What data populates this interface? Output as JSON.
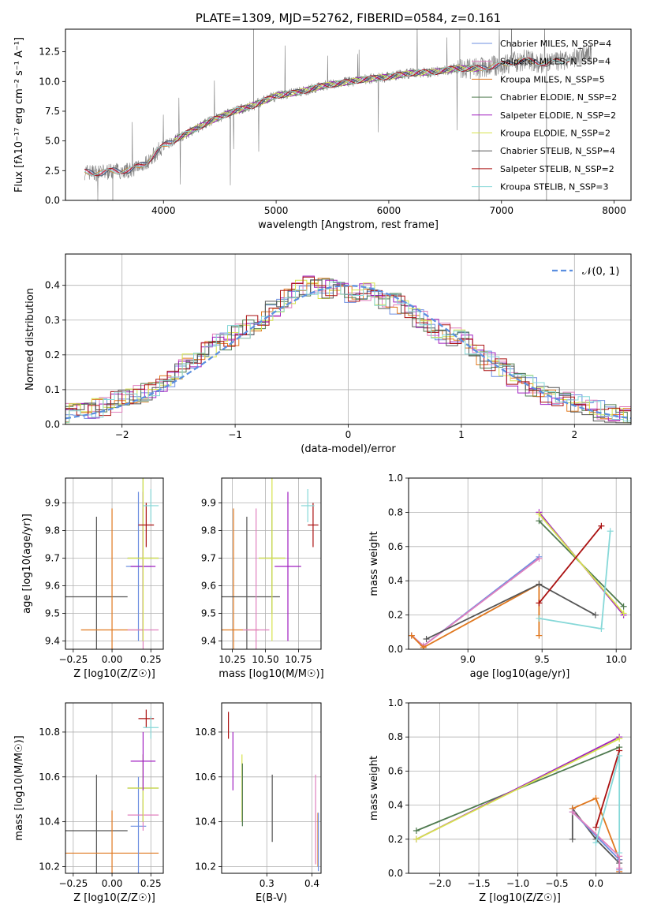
{
  "colors": {
    "chabrier_miles": "#6d8fe0",
    "salpeter_miles": "#e07fbe",
    "kroupa_miles": "#e0781f",
    "chabrier_elodie": "#4f7a4f",
    "salpeter_elodie": "#a01fc0",
    "kroupa_elodie": "#d6e34c",
    "chabrier_stelib": "#555555",
    "salpeter_stelib": "#aa1010",
    "kroupa_stelib": "#86d8d8",
    "spectrum": "#808080",
    "gaussian": "#5b8fe0"
  },
  "chart_data": [
    {
      "type": "line",
      "title": "PLATE=1309, MJD=52762, FIBERID=0584, z=0.161",
      "xlabel": "wavelength [Angstrom, rest frame]",
      "ylabel": "Flux [fλ10⁻¹⁷ erg cm⁻² s⁻¹ A⁻¹]",
      "xlim": [
        3130,
        8150
      ],
      "ylim": [
        0,
        14.4
      ],
      "xticks": [
        4000,
        5000,
        6000,
        7000,
        8000
      ],
      "yticks": [
        0.0,
        2.5,
        5.0,
        7.5,
        10.0,
        12.5
      ],
      "grid": false,
      "legend_position": "right",
      "legend": [
        "Chabrier MILES, N_SSP=4",
        "Salpeter MILES, N_SSP=4",
        "Kroupa MILES, N_SSP=5",
        "Chabrier ELODIE, N_SSP=2",
        "Salpeter ELODIE, N_SSP=2",
        "Kroupa ELODIE, N_SSP=2",
        "Chabrier STELIB, N_SSP=4",
        "Salpeter STELIB, N_SSP=2",
        "Kroupa STELIB, N_SSP=3"
      ],
      "model_continuum": {
        "x": [
          3300,
          3450,
          3550,
          3700,
          3850,
          4000,
          4200,
          4400,
          4600,
          4800,
          5000,
          5200,
          5400,
          5600,
          5800,
          6000,
          6200,
          6400,
          6600,
          6800,
          7000,
          7200,
          7400,
          7600,
          7800
        ],
        "y": [
          2.4,
          2.3,
          2.5,
          2.5,
          3.2,
          4.6,
          5.6,
          6.6,
          7.4,
          8.0,
          8.8,
          9.1,
          9.6,
          9.9,
          10.2,
          10.4,
          10.7,
          10.8,
          11.1,
          11.1,
          11.4,
          11.8,
          11.5,
          11.9,
          12.4
        ]
      }
    },
    {
      "type": "line",
      "xlabel": "(data-model)/error",
      "ylabel": "Normed distribution",
      "xlim": [
        -2.5,
        2.5
      ],
      "ylim": [
        0,
        0.49
      ],
      "xticks": [
        -2,
        -1,
        0,
        1,
        2
      ],
      "yticks": [
        0.0,
        0.1,
        0.2,
        0.3,
        0.4
      ],
      "grid": true,
      "legend": [
        "𝒩(0, 1)"
      ],
      "legend_position": "top-right",
      "histogram_envelope": {
        "x": [
          -2.5,
          -2.2,
          -2.0,
          -1.8,
          -1.6,
          -1.4,
          -1.2,
          -1.0,
          -0.8,
          -0.6,
          -0.4,
          -0.2,
          0.0,
          0.2,
          0.4,
          0.6,
          0.8,
          1.0,
          1.2,
          1.4,
          1.6,
          1.8,
          2.0,
          2.2,
          2.5
        ],
        "y": [
          0.03,
          0.05,
          0.07,
          0.09,
          0.12,
          0.18,
          0.22,
          0.26,
          0.3,
          0.35,
          0.4,
          0.39,
          0.38,
          0.38,
          0.35,
          0.31,
          0.27,
          0.24,
          0.19,
          0.15,
          0.11,
          0.08,
          0.06,
          0.04,
          0.02
        ]
      }
    },
    {
      "type": "scatter",
      "xlabel": "Z [log10(Z/Z☉)]",
      "ylabel": "age  [log10(age/yr)]",
      "xlim": [
        -0.3,
        0.33
      ],
      "ylim": [
        9.37,
        9.99
      ],
      "xticks": [
        -0.25,
        0.0,
        0.25
      ],
      "yticks": [
        9.4,
        9.5,
        9.6,
        9.7,
        9.8,
        9.9
      ],
      "grid": true,
      "points": [
        {
          "model": "chabrier_stelib",
          "x": -0.1,
          "y": 9.56,
          "xerr": 0.2,
          "yerr": 0.29
        },
        {
          "model": "kroupa_miles",
          "x": 0.0,
          "y": 9.44,
          "xerr": 0.2,
          "yerr": 0.44
        },
        {
          "model": "chabrier_miles",
          "x": 0.17,
          "y": 9.67,
          "xerr": 0.08,
          "yerr": 0.27
        },
        {
          "model": "salpeter_miles",
          "x": 0.2,
          "y": 9.44,
          "xerr": 0.1,
          "yerr": 0.44
        },
        {
          "model": "chabrier_elodie",
          "x": 0.2,
          "y": 9.7,
          "xerr": 0.1,
          "yerr": 0.3
        },
        {
          "model": "salpeter_elodie",
          "x": 0.2,
          "y": 9.67,
          "xerr": 0.08,
          "yerr": 0.27
        },
        {
          "model": "kroupa_elodie",
          "x": 0.2,
          "y": 9.7,
          "xerr": 0.1,
          "yerr": 0.3
        },
        {
          "model": "salpeter_stelib",
          "x": 0.22,
          "y": 9.82,
          "xerr": 0.05,
          "yerr": 0.08
        },
        {
          "model": "kroupa_stelib",
          "x": 0.25,
          "y": 9.89,
          "xerr": 0.05,
          "yerr": 0.06
        }
      ]
    },
    {
      "type": "scatter",
      "xlabel": "mass [log10(M/M☉)]",
      "ylabel": "",
      "xlim": [
        10.17,
        10.92
      ],
      "ylim": [
        9.37,
        9.99
      ],
      "xticks": [
        10.25,
        10.5,
        10.75
      ],
      "yticks": [
        9.4,
        9.5,
        9.6,
        9.7,
        9.8,
        9.9
      ],
      "grid": true,
      "points": [
        {
          "model": "kroupa_miles",
          "x": 10.26,
          "y": 9.44,
          "xerr": 0.19,
          "yerr": 0.44
        },
        {
          "model": "chabrier_stelib",
          "x": 10.36,
          "y": 9.56,
          "xerr": 0.25,
          "yerr": 0.29
        },
        {
          "model": "chabrier_elodie",
          "x": 10.55,
          "y": 9.7,
          "xerr": 0.1,
          "yerr": 0.2
        },
        {
          "model": "salpeter_miles",
          "x": 10.43,
          "y": 9.44,
          "xerr": 0.1,
          "yerr": 0.44
        },
        {
          "model": "kroupa_elodie",
          "x": 10.55,
          "y": 9.7,
          "xerr": 0.1,
          "yerr": 0.3
        },
        {
          "model": "salpeter_elodie",
          "x": 10.67,
          "y": 9.67,
          "xerr": 0.1,
          "yerr": 0.27
        },
        {
          "model": "salpeter_stelib",
          "x": 10.86,
          "y": 9.82,
          "xerr": 0.04,
          "yerr": 0.08
        },
        {
          "model": "kroupa_stelib",
          "x": 10.82,
          "y": 9.89,
          "xerr": 0.05,
          "yerr": 0.06
        }
      ]
    },
    {
      "type": "line",
      "xlabel": "age  [log10(age/yr)]",
      "ylabel": "mass weight",
      "xlim": [
        8.6,
        10.1
      ],
      "ylim": [
        0.0,
        1.0
      ],
      "xticks": [
        9.0,
        9.5,
        10.0
      ],
      "yticks": [
        0.0,
        0.2,
        0.4,
        0.6,
        0.8,
        1.0
      ],
      "grid": true,
      "series": [
        {
          "model": "chabrier_miles",
          "x": [
            8.62,
            8.7,
            9.48
          ],
          "y": [
            0.08,
            0.02,
            0.54
          ]
        },
        {
          "model": "salpeter_miles",
          "x": [
            8.62,
            8.7,
            9.48
          ],
          "y": [
            0.08,
            0.02,
            0.53
          ]
        },
        {
          "model": "kroupa_miles",
          "x": [
            8.62,
            8.7,
            9.48,
            9.48
          ],
          "y": [
            0.08,
            0.01,
            0.38,
            0.08
          ]
        },
        {
          "model": "chabrier_elodie",
          "x": [
            9.48,
            10.05
          ],
          "y": [
            0.75,
            0.25
          ]
        },
        {
          "model": "salpeter_elodie",
          "x": [
            9.48,
            10.05
          ],
          "y": [
            0.8,
            0.2
          ]
        },
        {
          "model": "kroupa_elodie",
          "x": [
            9.48,
            10.05
          ],
          "y": [
            0.79,
            0.21
          ]
        },
        {
          "model": "chabrier_stelib",
          "x": [
            8.72,
            9.48,
            9.86
          ],
          "y": [
            0.06,
            0.38,
            0.2
          ]
        },
        {
          "model": "salpeter_stelib",
          "x": [
            9.48,
            9.9
          ],
          "y": [
            0.27,
            0.72
          ]
        },
        {
          "model": "kroupa_stelib",
          "x": [
            9.48,
            9.9,
            9.96
          ],
          "y": [
            0.18,
            0.12,
            0.69
          ]
        }
      ]
    },
    {
      "type": "scatter",
      "xlabel": "Z [log10(Z/Z☉)]",
      "ylabel": "mass [log10(M/M☉)]",
      "xlim": [
        -0.3,
        0.33
      ],
      "ylim": [
        10.17,
        10.93
      ],
      "xticks": [
        -0.25,
        0.0,
        0.25
      ],
      "yticks": [
        10.2,
        10.4,
        10.6,
        10.8
      ],
      "grid": true,
      "points": [
        {
          "model": "chabrier_stelib",
          "x": -0.1,
          "y": 10.36,
          "xerr": 0.2,
          "yerr": 0.25
        },
        {
          "model": "kroupa_miles",
          "x": 0.0,
          "y": 10.26,
          "xerr": 0.3,
          "yerr": 0.19
        },
        {
          "model": "chabrier_miles",
          "x": 0.17,
          "y": 10.38,
          "xerr": 0.05,
          "yerr": 0.22
        },
        {
          "model": "salpeter_miles",
          "x": 0.2,
          "y": 10.43,
          "xerr": 0.1,
          "yerr": 0.07
        },
        {
          "model": "chabrier_elodie",
          "x": 0.2,
          "y": 10.55,
          "xerr": 0.1,
          "yerr": 0.15
        },
        {
          "model": "kroupa_elodie",
          "x": 0.2,
          "y": 10.55,
          "xerr": 0.1,
          "yerr": 0.15
        },
        {
          "model": "salpeter_elodie",
          "x": 0.2,
          "y": 10.67,
          "xerr": 0.08,
          "yerr": 0.13
        },
        {
          "model": "salpeter_stelib",
          "x": 0.22,
          "y": 10.86,
          "xerr": 0.05,
          "yerr": 0.04
        },
        {
          "model": "kroupa_stelib",
          "x": 0.25,
          "y": 10.82,
          "xerr": 0.05,
          "yerr": 0.05
        }
      ]
    },
    {
      "type": "scatter",
      "xlabel": "E(B-V)",
      "ylabel": "",
      "xlim": [
        0.2,
        0.42
      ],
      "ylim": [
        10.17,
        10.93
      ],
      "xticks": [
        0.3,
        0.4
      ],
      "yticks": [
        10.2,
        10.4,
        10.6,
        10.8
      ],
      "grid": true,
      "points": [
        {
          "model": "salpeter_stelib",
          "x": 0.215,
          "y": 10.83,
          "yerr": 0.06
        },
        {
          "model": "salpeter_elodie",
          "x": 0.225,
          "y": 10.67,
          "yerr": 0.13
        },
        {
          "model": "kroupa_elodie",
          "x": 0.245,
          "y": 10.55,
          "yerr": 0.15
        },
        {
          "model": "chabrier_elodie",
          "x": 0.246,
          "y": 10.52,
          "yerr": 0.14
        },
        {
          "model": "chabrier_stelib",
          "x": 0.312,
          "y": 10.46,
          "yerr": 0.15
        },
        {
          "model": "salpeter_miles",
          "x": 0.408,
          "y": 10.41,
          "yerr": 0.2
        },
        {
          "model": "kroupa_miles",
          "x": 0.413,
          "y": 10.32,
          "yerr": 0.12
        },
        {
          "model": "chabrier_miles",
          "x": 0.414,
          "y": 10.31,
          "yerr": 0.13
        }
      ]
    },
    {
      "type": "line",
      "xlabel": "Z [log10(Z/Z☉)]",
      "ylabel": "mass weight",
      "xlim": [
        -2.4,
        0.45
      ],
      "ylim": [
        0.0,
        1.0
      ],
      "xticks": [
        -2.0,
        -1.5,
        -1.0,
        -0.5,
        0.0
      ],
      "yticks": [
        0.0,
        0.2,
        0.4,
        0.6,
        0.8,
        1.0
      ],
      "grid": true,
      "series": [
        {
          "model": "chabrier_elodie",
          "x": [
            -2.3,
            0.3
          ],
          "y": [
            0.25,
            0.74
          ]
        },
        {
          "model": "salpeter_elodie",
          "x": [
            -2.3,
            0.3
          ],
          "y": [
            0.2,
            0.8
          ]
        },
        {
          "model": "kroupa_elodie",
          "x": [
            -2.3,
            0.3
          ],
          "y": [
            0.2,
            0.79
          ]
        },
        {
          "model": "chabrier_stelib",
          "x": [
            -0.3,
            -0.3,
            0.0,
            0.3
          ],
          "y": [
            0.2,
            0.38,
            0.2,
            0.06
          ]
        },
        {
          "model": "kroupa_miles",
          "x": [
            -0.3,
            0.0,
            0.3,
            0.3
          ],
          "y": [
            0.38,
            0.44,
            0.08,
            0.01
          ]
        },
        {
          "model": "chabrier_miles",
          "x": [
            -0.3,
            0.3,
            0.3
          ],
          "y": [
            0.36,
            0.08,
            0.02
          ]
        },
        {
          "model": "salpeter_miles",
          "x": [
            -0.3,
            0.3,
            0.3
          ],
          "y": [
            0.36,
            0.1,
            0.03
          ]
        },
        {
          "model": "salpeter_stelib",
          "x": [
            0.0,
            0.3
          ],
          "y": [
            0.27,
            0.72
          ]
        },
        {
          "model": "kroupa_stelib",
          "x": [
            0.0,
            0.3,
            0.3
          ],
          "y": [
            0.18,
            0.69,
            0.12
          ]
        }
      ]
    }
  ]
}
